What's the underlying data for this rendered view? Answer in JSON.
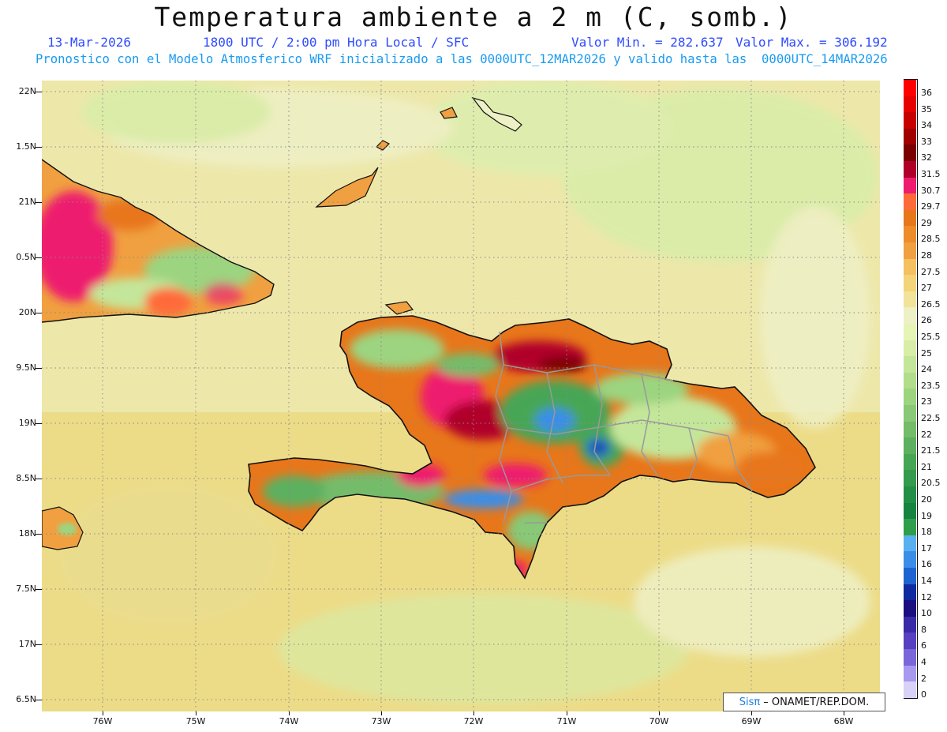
{
  "header": {
    "title": "Temperatura ambiente a 2 m (C, somb.)",
    "date": "13-Mar-2026",
    "time": "1800 UTC / 2:00 pm Hora Local / SFC",
    "min_label": "Valor Min. = 282.637",
    "max_label": "Valor Max. = 306.192",
    "model_line": "Pronostico con el Modelo Atmosferico WRF inicializado a las 0000UTC_12MAR2026 y valido hasta las  0000UTC_14MAR2026"
  },
  "map": {
    "lat_labels": [
      "22N",
      "1.5N",
      "21N",
      "0.5N",
      "20N",
      "9.5N",
      "19N",
      "8.5N",
      "18N",
      "7.5N",
      "17N",
      "6.5N"
    ],
    "lon_labels": [
      "76W",
      "75W",
      "74W",
      "73W",
      "72W",
      "71W",
      "70W",
      "69W",
      "68W"
    ]
  },
  "legend": {
    "levels": [
      "36",
      "35",
      "34",
      "33",
      "32",
      "31.5",
      "30.7",
      "29.7",
      "29",
      "28.5",
      "28",
      "27.5",
      "27",
      "26.5",
      "26",
      "25.5",
      "25",
      "24",
      "23.5",
      "23",
      "22.5",
      "22",
      "21.5",
      "21",
      "20.5",
      "20",
      "19",
      "18",
      "17",
      "16",
      "14",
      "12",
      "10",
      "8",
      "6",
      "4",
      "2",
      "0"
    ],
    "colors": [
      "#ff0000",
      "#e60000",
      "#c80000",
      "#a00000",
      "#7a0000",
      "#b0002a",
      "#ee1c6e",
      "#ff6a3a",
      "#e8761a",
      "#ee8c2a",
      "#f0a040",
      "#f4c060",
      "#f4d478",
      "#f2e39a",
      "#eef0c6",
      "#e6f4b6",
      "#d8eea8",
      "#c4e69a",
      "#b2de8c",
      "#9cd480",
      "#88c876",
      "#74bc6a",
      "#5cb060",
      "#46a656",
      "#339a4e",
      "#228f46",
      "#16843e",
      "#2e9e4a",
      "#58b0ef",
      "#3a8ee8",
      "#1e64d0",
      "#102aa0",
      "#1a0e80",
      "#3a2aa8",
      "#5840c0",
      "#7a66d8",
      "#a898ee",
      "#d8d2f8"
    ]
  },
  "credit": {
    "sis": "Sisπ",
    "rest": "– ONAMET/REP.DOM."
  }
}
